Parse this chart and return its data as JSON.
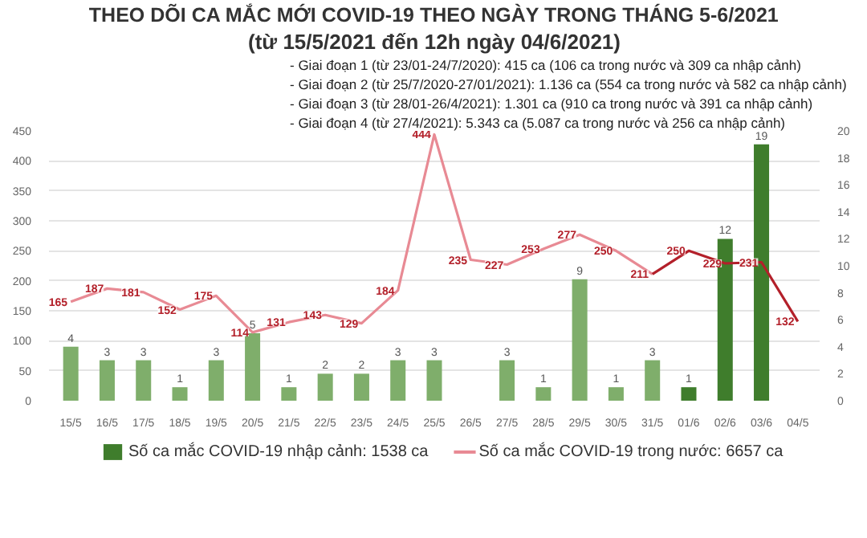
{
  "chart_data": {
    "type": "bar",
    "title": "THEO DÕI CA MẮC MỚI COVID-19 THEO NGÀY TRONG THÁNG 5-6/2021",
    "subtitle": "(từ 15/5/2021 đến 12h ngày 04/6/2021)",
    "annotations": [
      "- Giai đoạn 1 (từ 23/01-24/7/2020): 415 ca (106 ca trong nước và 309 ca nhập cảnh)",
      "- Giai đoạn 2 (từ 25/7/2020-27/01/2021): 1.136 ca (554 ca trong nước và 582 ca nhập cảnh)",
      "- Giai đoạn 3 (từ 28/01-26/4/2021): 1.301 ca (910 ca trong nước và 391 ca nhập cảnh)",
      "- Giai đoạn 4 (từ 27/4/2021): 5.343 ca (5.087 ca trong nước và 256 ca nhập cảnh)"
    ],
    "categories": [
      "15/5",
      "16/5",
      "17/5",
      "18/5",
      "19/5",
      "20/5",
      "21/5",
      "22/5",
      "23/5",
      "24/5",
      "25/5",
      "26/5",
      "27/5",
      "28/5",
      "29/5",
      "30/5",
      "31/5",
      "01/6",
      "02/6",
      "03/6",
      "04/5"
    ],
    "series": [
      {
        "name": "Số ca mắc COVID-19 nhập cảnh: 1538 ca",
        "axis": "y2",
        "colors": [
          "#7fae6b",
          "#7fae6b",
          "#7fae6b",
          "#7fae6b",
          "#7fae6b",
          "#7fae6b",
          "#7fae6b",
          "#7fae6b",
          "#7fae6b",
          "#7fae6b",
          "#7fae6b",
          "#7fae6b",
          "#7fae6b",
          "#7fae6b",
          "#7fae6b",
          "#7fae6b",
          "#7fae6b",
          "#3f7d2c",
          "#3f7d2c",
          "#3f7d2c",
          "#3f7d2c"
        ],
        "values": [
          4,
          3,
          3,
          1,
          3,
          5,
          1,
          2,
          2,
          3,
          3,
          null,
          3,
          1,
          9,
          1,
          3,
          1,
          12,
          19,
          null
        ],
        "value_labels": [
          "4",
          "3",
          "3",
          "1",
          "3",
          "5",
          "1",
          "2",
          "2",
          "3",
          "3",
          null,
          "3",
          "1",
          "9",
          "1",
          "3",
          "1",
          "12",
          "19",
          null
        ]
      },
      {
        "name": "Số ca mắc COVID-19 trong nước: 6657 ca",
        "type": "line",
        "color": "#e88a94",
        "values": [
          165,
          187,
          181,
          152,
          175,
          114,
          131,
          143,
          129,
          184,
          444,
          235,
          227,
          253,
          277,
          250,
          211,
          null,
          null,
          null,
          null
        ],
        "value_labels": [
          "165",
          "187",
          "181",
          "152",
          "175",
          "114",
          "131",
          "143",
          "129",
          "184",
          "444",
          "235",
          "227",
          "253",
          "277",
          "250",
          "211",
          null,
          null,
          null,
          null
        ]
      },
      {
        "type": "line",
        "color": "#b3202a",
        "values": [
          null,
          null,
          null,
          null,
          null,
          null,
          null,
          null,
          null,
          null,
          null,
          null,
          null,
          null,
          null,
          null,
          211,
          250,
          229,
          231,
          132
        ],
        "value_labels": [
          null,
          null,
          null,
          null,
          null,
          null,
          null,
          null,
          null,
          null,
          null,
          null,
          null,
          null,
          null,
          null,
          null,
          "250",
          "229",
          "231",
          "132"
        ]
      }
    ],
    "ylim": [
      0,
      450
    ],
    "yticks": [
      0,
      50,
      100,
      150,
      200,
      250,
      300,
      350,
      400,
      450
    ],
    "y2lim": [
      0,
      20
    ],
    "y2ticks": [
      0,
      2,
      4,
      6,
      8,
      10,
      12,
      14,
      16,
      18,
      20
    ],
    "grid": "y",
    "legend": "bottom",
    "line_style": "solid",
    "marker": "none"
  }
}
